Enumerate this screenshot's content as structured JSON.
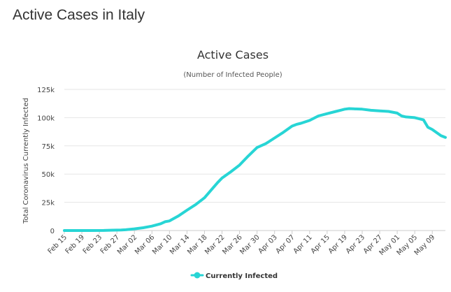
{
  "page_title": "Active Cases in Italy",
  "chart_data": {
    "type": "line",
    "title": "Active Cases",
    "subtitle": "(Number of Infected People)",
    "ylabel": "Total Coronavirus Currently Infected",
    "xlabel": "",
    "ylim": [
      0,
      125000
    ],
    "y_ticks": [
      {
        "value": 0,
        "label": "0"
      },
      {
        "value": 25000,
        "label": "25k"
      },
      {
        "value": 50000,
        "label": "50k"
      },
      {
        "value": 75000,
        "label": "75k"
      },
      {
        "value": 100000,
        "label": "100k"
      },
      {
        "value": 125000,
        "label": "125k"
      }
    ],
    "x_ticks": [
      {
        "day": 0,
        "label": "Feb 15"
      },
      {
        "day": 4,
        "label": "Feb 19"
      },
      {
        "day": 8,
        "label": "Feb 23"
      },
      {
        "day": 12,
        "label": "Feb 27"
      },
      {
        "day": 16,
        "label": "Mar 02"
      },
      {
        "day": 20,
        "label": "Mar 06"
      },
      {
        "day": 24,
        "label": "Mar 10"
      },
      {
        "day": 28,
        "label": "Mar 14"
      },
      {
        "day": 32,
        "label": "Mar 18"
      },
      {
        "day": 36,
        "label": "Mar 22"
      },
      {
        "day": 40,
        "label": "Mar 26"
      },
      {
        "day": 44,
        "label": "Mar 30"
      },
      {
        "day": 48,
        "label": "Apr 03"
      },
      {
        "day": 52,
        "label": "Apr 07"
      },
      {
        "day": 56,
        "label": "Apr 11"
      },
      {
        "day": 60,
        "label": "Apr 15"
      },
      {
        "day": 64,
        "label": "Apr 19"
      },
      {
        "day": 68,
        "label": "Apr 23"
      },
      {
        "day": 72,
        "label": "Apr 27"
      },
      {
        "day": 76,
        "label": "May 01"
      },
      {
        "day": 80,
        "label": "May 05"
      },
      {
        "day": 84,
        "label": "May 09"
      }
    ],
    "x_range_days": [
      0,
      87
    ],
    "grid": true,
    "legend_position": "bottom-center",
    "series": [
      {
        "name": "Currently Infected",
        "color": "#27d5d5",
        "points": [
          [
            0,
            3
          ],
          [
            5,
            3
          ],
          [
            9,
            50
          ],
          [
            11,
            300
          ],
          [
            13,
            500
          ],
          [
            14,
            700
          ],
          [
            16,
            1500
          ],
          [
            18,
            2500
          ],
          [
            20,
            3900
          ],
          [
            22,
            6000
          ],
          [
            23,
            7800
          ],
          [
            24,
            8500
          ],
          [
            26,
            12800
          ],
          [
            28,
            18000
          ],
          [
            30,
            23000
          ],
          [
            32,
            29000
          ],
          [
            34,
            38000
          ],
          [
            35,
            42500
          ],
          [
            36,
            46500
          ],
          [
            38,
            52000
          ],
          [
            40,
            58000
          ],
          [
            42,
            66000
          ],
          [
            44,
            73500
          ],
          [
            46,
            77000
          ],
          [
            48,
            82000
          ],
          [
            50,
            87000
          ],
          [
            52,
            92500
          ],
          [
            53,
            94000
          ],
          [
            54,
            95000
          ],
          [
            56,
            97500
          ],
          [
            58,
            101500
          ],
          [
            60,
            103500
          ],
          [
            62,
            105500
          ],
          [
            63,
            106500
          ],
          [
            64,
            107500
          ],
          [
            65,
            108000
          ],
          [
            66,
            107800
          ],
          [
            68,
            107500
          ],
          [
            70,
            106500
          ],
          [
            72,
            106000
          ],
          [
            74,
            105500
          ],
          [
            76,
            104000
          ],
          [
            77,
            101500
          ],
          [
            78,
            100600
          ],
          [
            80,
            100000
          ],
          [
            82,
            98000
          ],
          [
            83,
            91500
          ],
          [
            84,
            89500
          ],
          [
            86,
            84000
          ],
          [
            87,
            82500
          ]
        ]
      }
    ]
  }
}
